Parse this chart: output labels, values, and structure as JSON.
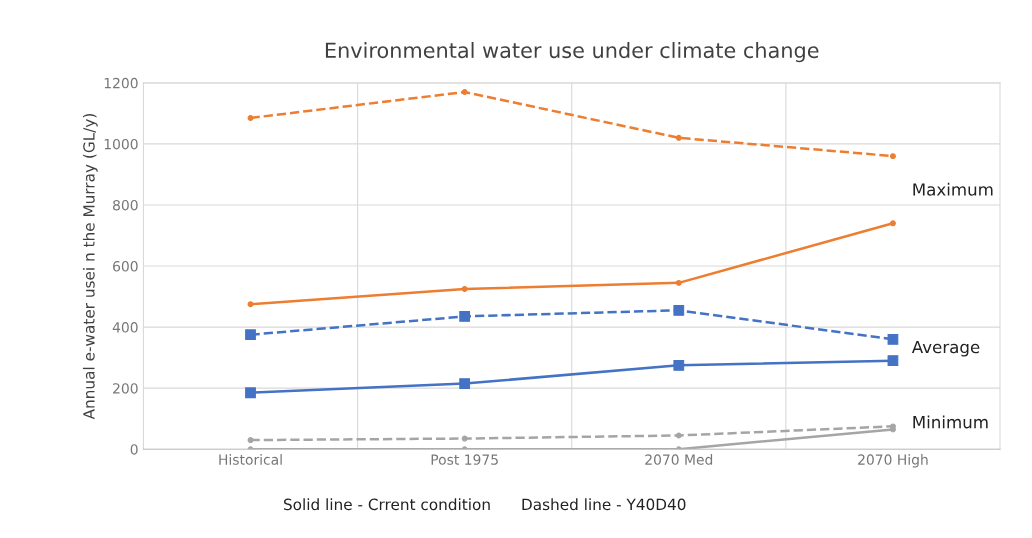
{
  "chart_data": {
    "type": "line",
    "title": "Environmental water use under climate change",
    "ylabel": "Annual e-water usei n the Murray (GL/y)",
    "categories": [
      "Historical",
      "Post 1975",
      "2070 Med",
      "2070 High"
    ],
    "series": [
      {
        "color": "#ed7d31",
        "values": [
          1085,
          1170,
          1020,
          960
        ],
        "line_style": "dashed",
        "marker": "circle"
      },
      {
        "color": "#ed7d31",
        "values": [
          475,
          525,
          545,
          740
        ],
        "line_style": "solid",
        "marker": "circle"
      },
      {
        "color": "#4472c4",
        "values": [
          375,
          435,
          455,
          360
        ],
        "line_style": "dashed",
        "marker": "square"
      },
      {
        "color": "#4472c4",
        "values": [
          185,
          215,
          275,
          290
        ],
        "line_style": "solid",
        "marker": "square"
      },
      {
        "color": "#a5a5a5",
        "values": [
          30,
          35,
          45,
          75
        ],
        "line_style": "dashed",
        "marker": "circle"
      },
      {
        "color": "#a5a5a5",
        "values": [
          0,
          0,
          0,
          65
        ],
        "line_style": "solid",
        "marker": "circle"
      }
    ],
    "ylim": [
      0,
      1200
    ],
    "yticks": [
      0,
      200,
      400,
      600,
      800,
      1000,
      1200
    ],
    "grid": true,
    "legend": false,
    "annotations": [
      "Maximum",
      "Average",
      "Minimum",
      "Solid line - Crrent condition",
      "Dashed line - Y40D40"
    ]
  }
}
